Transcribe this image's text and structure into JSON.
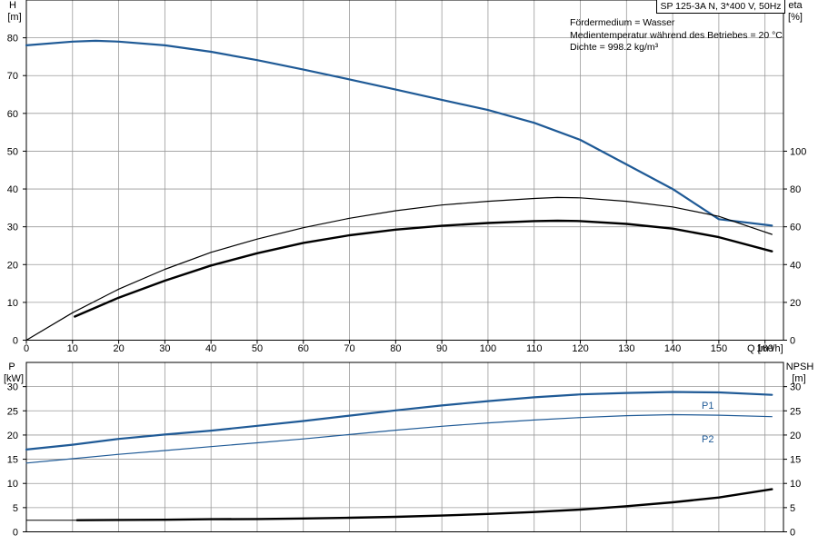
{
  "header": {
    "pump_info": "SP 125-3A N, 3*400 V, 50Hz",
    "notes": [
      "Fördermedium = Wasser",
      "Medientemperatur während des Betriebes = 20 °C",
      "Dichte = 998.2 kg/m³"
    ]
  },
  "chart_data": [
    {
      "type": "line",
      "xlabel": "Q [m³/h]",
      "ylabel_left": [
        "H",
        "[m]"
      ],
      "ylabel_right": [
        "eta",
        "[%]"
      ],
      "xlim": [
        0,
        164
      ],
      "ylim_left": [
        0,
        90
      ],
      "ylim_right": [
        0,
        180
      ],
      "x_ticks": [
        0,
        10,
        20,
        30,
        40,
        50,
        60,
        70,
        80,
        90,
        100,
        110,
        120,
        130,
        140,
        150,
        160
      ],
      "y_ticks_left": [
        0,
        10,
        20,
        30,
        40,
        50,
        60,
        70,
        80
      ],
      "y_ticks_right": [
        0,
        20,
        40,
        60,
        80,
        100
      ],
      "grid": true,
      "series": [
        {
          "axis": "left",
          "color": "#1f5a96",
          "width": 2.2,
          "points": [
            [
              0,
              78
            ],
            [
              10,
              79
            ],
            [
              15,
              79.2
            ],
            [
              20,
              79
            ],
            [
              30,
              78
            ],
            [
              40,
              76.3
            ],
            [
              50,
              74.1
            ],
            [
              60,
              71.6
            ],
            [
              70,
              69
            ],
            [
              80,
              66.3
            ],
            [
              90,
              63.6
            ],
            [
              100,
              60.9
            ],
            [
              110,
              57.5
            ],
            [
              120,
              53
            ],
            [
              130,
              46.5
            ],
            [
              140,
              40
            ],
            [
              150,
              32
            ],
            [
              161.5,
              30.3
            ]
          ]
        },
        {
          "axis": "right",
          "color": "#000000",
          "width": 1.2,
          "points": [
            [
              0,
              0
            ],
            [
              10,
              14.5
            ],
            [
              20,
              27
            ],
            [
              30,
              37.5
            ],
            [
              40,
              46.5
            ],
            [
              50,
              53.5
            ],
            [
              60,
              59.5
            ],
            [
              70,
              64.5
            ],
            [
              80,
              68.5
            ],
            [
              90,
              71.5
            ],
            [
              100,
              73.5
            ],
            [
              110,
              75
            ],
            [
              115,
              75.5
            ],
            [
              120,
              75.3
            ],
            [
              130,
              73.5
            ],
            [
              140,
              70.5
            ],
            [
              150,
              65.5
            ],
            [
              161.5,
              56
            ]
          ]
        },
        {
          "axis": "right",
          "color": "#000000",
          "width": 2.4,
          "points": [
            [
              10.5,
              12.5
            ],
            [
              20,
              22.5
            ],
            [
              30,
              31.5
            ],
            [
              40,
              39.5
            ],
            [
              50,
              46
            ],
            [
              60,
              51.5
            ],
            [
              70,
              55.5
            ],
            [
              80,
              58.5
            ],
            [
              90,
              60.5
            ],
            [
              100,
              62
            ],
            [
              110,
              63
            ],
            [
              115,
              63.2
            ],
            [
              120,
              63
            ],
            [
              130,
              61.5
            ],
            [
              140,
              59
            ],
            [
              150,
              54.5
            ],
            [
              161.5,
              47
            ]
          ]
        }
      ]
    },
    {
      "type": "line",
      "xlabel": "",
      "ylabel_left": [
        "P",
        "[kW]"
      ],
      "ylabel_right": [
        "NPSH",
        "[m]"
      ],
      "xlim": [
        0,
        164
      ],
      "ylim": [
        0,
        35
      ],
      "y_ticks_left": [
        0,
        5,
        10,
        15,
        20,
        25,
        30
      ],
      "y_ticks_right": [
        0,
        5,
        10,
        15,
        20,
        25,
        30
      ],
      "grid": true,
      "series": [
        {
          "name": "P1",
          "color": "#1f5a96",
          "width": 2.2,
          "points": [
            [
              0,
              17
            ],
            [
              10,
              18
            ],
            [
              20,
              19.2
            ],
            [
              30,
              20.1
            ],
            [
              40,
              20.9
            ],
            [
              50,
              21.9
            ],
            [
              60,
              22.9
            ],
            [
              70,
              24
            ],
            [
              80,
              25.1
            ],
            [
              90,
              26.1
            ],
            [
              100,
              27
            ],
            [
              110,
              27.8
            ],
            [
              120,
              28.4
            ],
            [
              130,
              28.7
            ],
            [
              140,
              28.9
            ],
            [
              150,
              28.8
            ],
            [
              161.5,
              28.3
            ]
          ]
        },
        {
          "name": "P2",
          "color": "#1f5a96",
          "width": 1.2,
          "points": [
            [
              0,
              14.2
            ],
            [
              10,
              15.1
            ],
            [
              20,
              16
            ],
            [
              30,
              16.8
            ],
            [
              40,
              17.6
            ],
            [
              50,
              18.4
            ],
            [
              60,
              19.2
            ],
            [
              70,
              20.1
            ],
            [
              80,
              21
            ],
            [
              90,
              21.8
            ],
            [
              100,
              22.5
            ],
            [
              110,
              23.1
            ],
            [
              120,
              23.6
            ],
            [
              130,
              24
            ],
            [
              140,
              24.2
            ],
            [
              150,
              24.1
            ],
            [
              161.5,
              23.8
            ]
          ]
        },
        {
          "name": "",
          "color": "#000000",
          "width": 2.4,
          "points": [
            [
              11,
              2.4
            ],
            [
              20,
              2.45
            ],
            [
              30,
              2.5
            ],
            [
              40,
              2.6
            ],
            [
              50,
              2.65
            ],
            [
              60,
              2.75
            ],
            [
              70,
              2.9
            ],
            [
              80,
              3.1
            ],
            [
              90,
              3.35
            ],
            [
              100,
              3.7
            ],
            [
              110,
              4.1
            ],
            [
              120,
              4.6
            ],
            [
              130,
              5.3
            ],
            [
              140,
              6.1
            ],
            [
              150,
              7.1
            ],
            [
              161.5,
              8.8
            ]
          ]
        },
        {
          "name": "",
          "color": "#000000",
          "width": 1.0,
          "points": [
            [
              0,
              2.4
            ],
            [
              11,
              2.4
            ]
          ]
        }
      ]
    }
  ]
}
